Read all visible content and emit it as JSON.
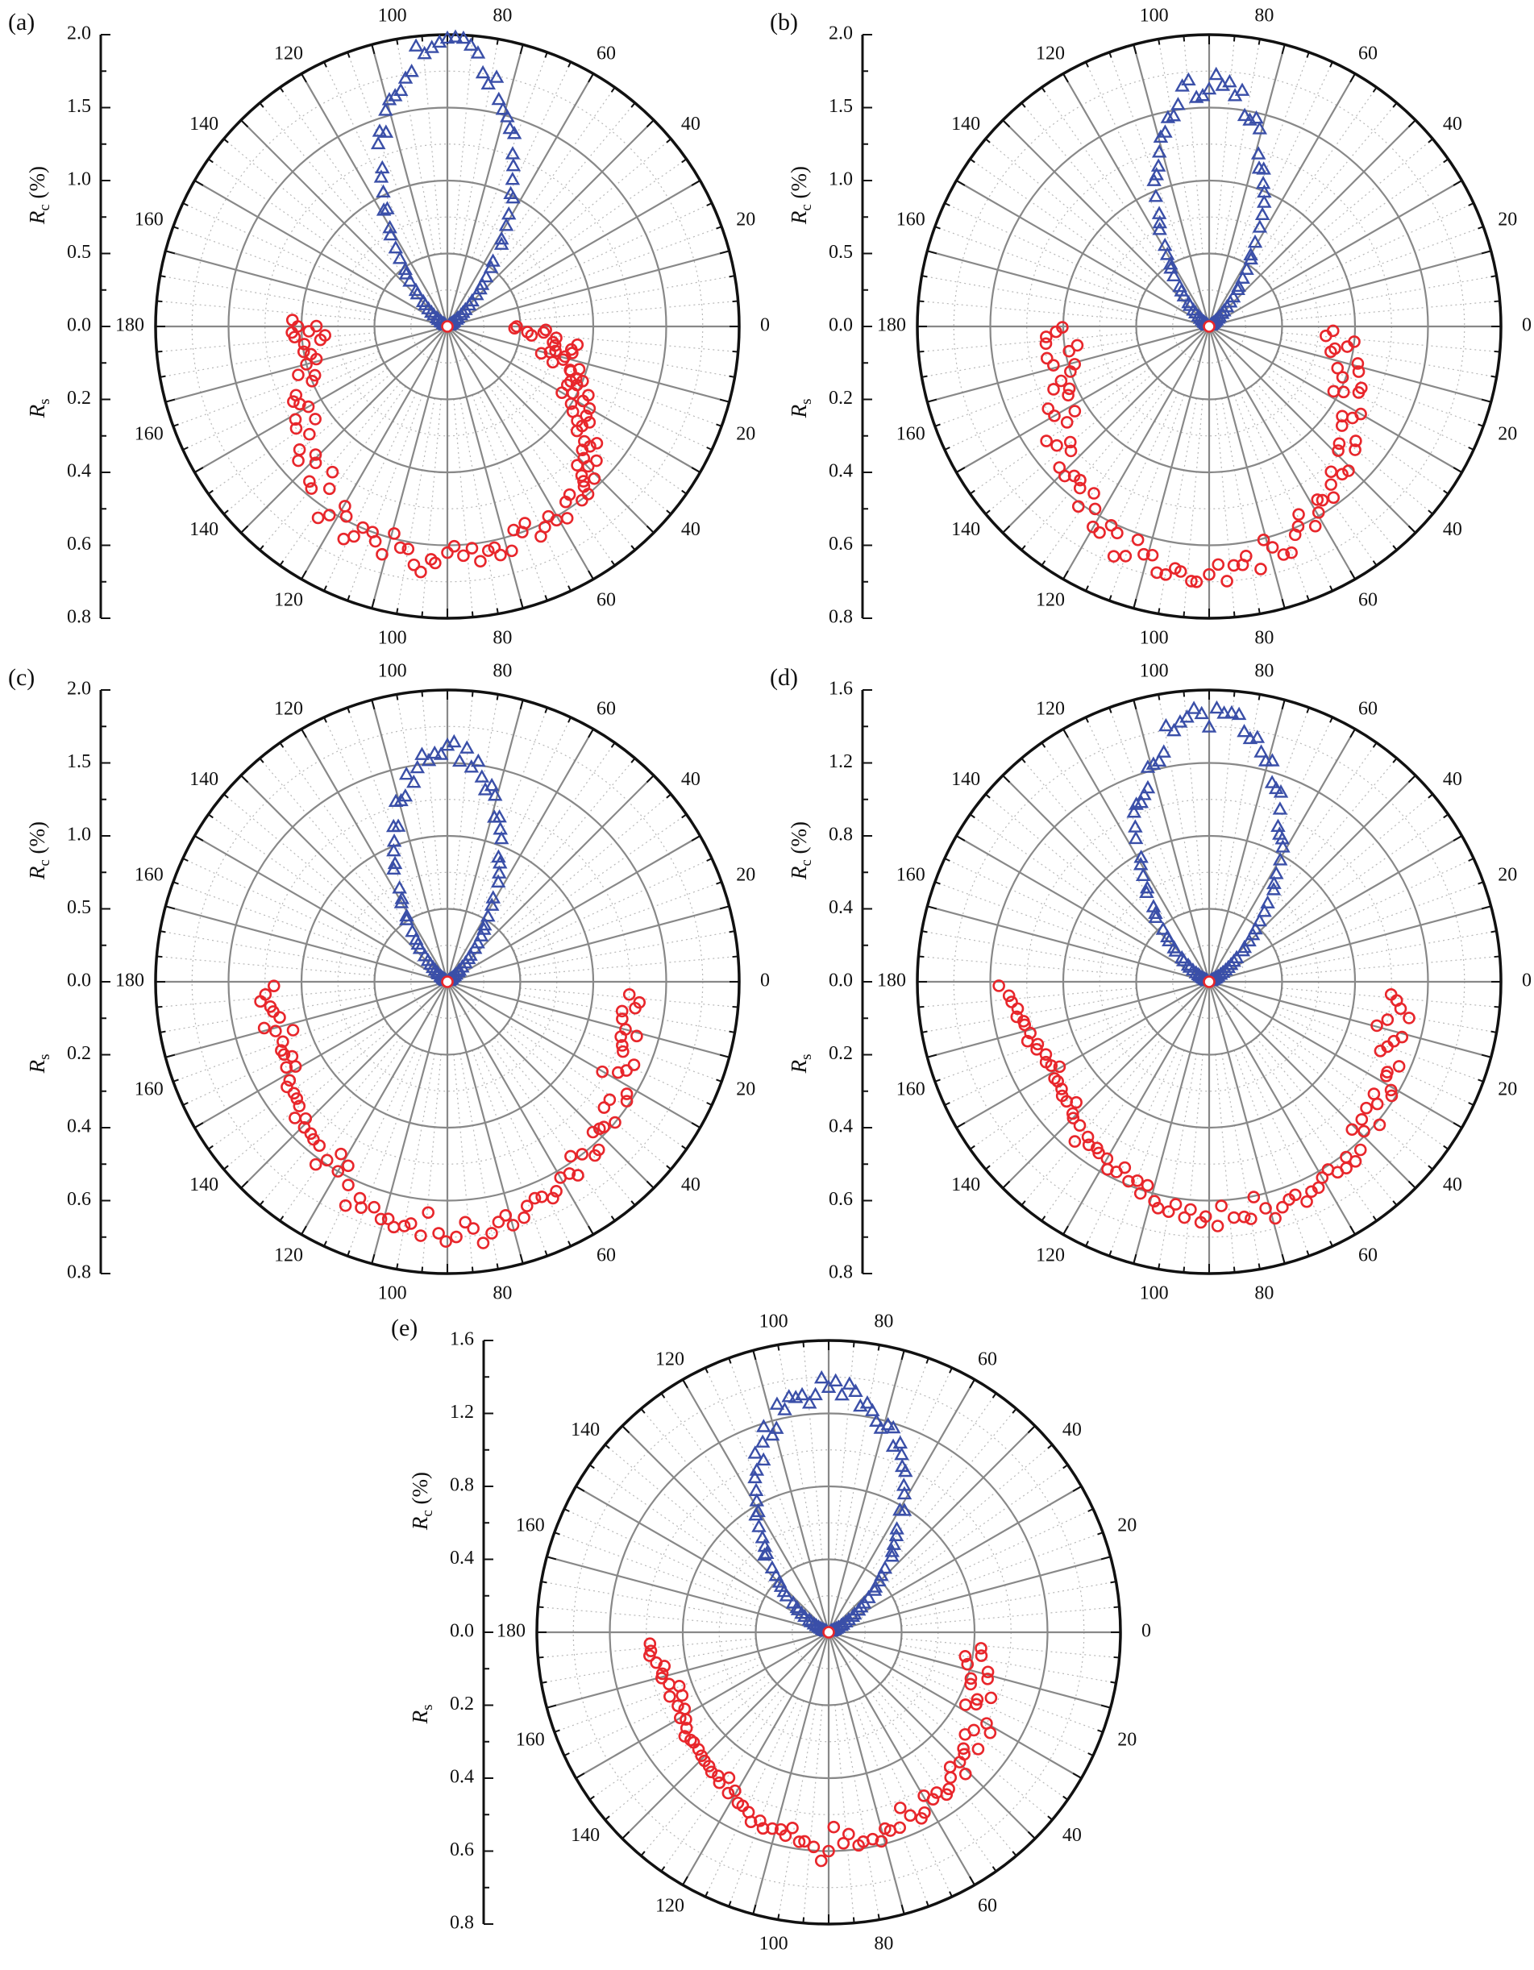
{
  "colors": {
    "rc_marker": "#3a4fa8",
    "rs_marker": "#e8262b",
    "axis": "#111111",
    "grid": "#888888",
    "minor_grid": "#b8b8b8"
  },
  "labels": {
    "rc_main": "R",
    "rc_sub": "c",
    "rc_unit": " (%)",
    "rs_main": "R",
    "rs_sub": "s"
  },
  "chart_data": [
    {
      "panel": "(a)",
      "type": "scatter",
      "coordinate": "polar",
      "rc_axis": {
        "ticks": [
          "2.0",
          "1.5",
          "1.0",
          "0.5",
          "0.0"
        ],
        "max": 2.0
      },
      "rs_axis": {
        "ticks": [
          "0.2",
          "0.4",
          "0.6",
          "0.8"
        ],
        "max": 0.8
      },
      "angle_labels_top": [
        "180",
        "160",
        "140",
        "120",
        "100",
        "80",
        "60",
        "40",
        "20",
        "0"
      ],
      "angle_labels_bottom": [
        "160",
        "140",
        "120",
        "100",
        "80",
        "60",
        "40",
        "20"
      ],
      "rc_peak": 1.95,
      "rc_width_exp": 6.0,
      "rs_points": [
        [
          0,
          0.19
        ],
        [
          2,
          0.27
        ],
        [
          4,
          0.22
        ],
        [
          6,
          0.3
        ],
        [
          8,
          0.36
        ],
        [
          10,
          0.3
        ],
        [
          12,
          0.35
        ],
        [
          14,
          0.29
        ],
        [
          16,
          0.33
        ],
        [
          18,
          0.38
        ],
        [
          20,
          0.36
        ],
        [
          22,
          0.4
        ],
        [
          24,
          0.37
        ],
        [
          26,
          0.43
        ],
        [
          28,
          0.39
        ],
        [
          30,
          0.45
        ],
        [
          32,
          0.4
        ],
        [
          34,
          0.47
        ],
        [
          36,
          0.44
        ],
        [
          38,
          0.52
        ],
        [
          40,
          0.49
        ],
        [
          42,
          0.55
        ],
        [
          44,
          0.52
        ],
        [
          46,
          0.58
        ],
        [
          48,
          0.55
        ],
        [
          50,
          0.6
        ],
        [
          54,
          0.57
        ],
        [
          58,
          0.62
        ],
        [
          62,
          0.59
        ],
        [
          66,
          0.63
        ],
        [
          70,
          0.6
        ],
        [
          74,
          0.64
        ],
        [
          78,
          0.62
        ],
        [
          82,
          0.65
        ],
        [
          86,
          0.63
        ],
        [
          90,
          0.62
        ],
        [
          94,
          0.64
        ],
        [
          98,
          0.66
        ],
        [
          102,
          0.62
        ],
        [
          106,
          0.65
        ],
        [
          110,
          0.6
        ],
        [
          114,
          0.63
        ],
        [
          118,
          0.59
        ],
        [
          122,
          0.61
        ],
        [
          126,
          0.55
        ],
        [
          130,
          0.58
        ],
        [
          134,
          0.52
        ],
        [
          138,
          0.55
        ],
        [
          142,
          0.48
        ],
        [
          146,
          0.5
        ],
        [
          150,
          0.44
        ],
        [
          154,
          0.47
        ],
        [
          158,
          0.4
        ],
        [
          162,
          0.43
        ],
        [
          166,
          0.37
        ],
        [
          170,
          0.4
        ],
        [
          174,
          0.35
        ],
        [
          176,
          0.42
        ],
        [
          178,
          0.38
        ],
        [
          180,
          0.41
        ]
      ],
      "rs_origin": true
    },
    {
      "panel": "(b)",
      "type": "scatter",
      "coordinate": "polar",
      "rc_axis": {
        "ticks": [
          "2.0",
          "1.5",
          "1.0",
          "0.5",
          "0.0"
        ],
        "max": 2.0
      },
      "rs_axis": {
        "ticks": [
          "0.2",
          "0.4",
          "0.6",
          "0.8"
        ],
        "max": 0.8
      },
      "angle_labels_top": [
        "180",
        "160",
        "140",
        "120",
        "100",
        "80",
        "60",
        "40",
        "20",
        "0"
      ],
      "angle_labels_bottom": [
        "160",
        "140",
        "120",
        "100",
        "80",
        "60",
        "40",
        "20"
      ],
      "rc_peak": 1.7,
      "rc_width_exp": 7.0,
      "rs_points": [
        [
          2,
          0.34
        ],
        [
          6,
          0.4
        ],
        [
          10,
          0.35
        ],
        [
          14,
          0.42
        ],
        [
          18,
          0.37
        ],
        [
          22,
          0.45
        ],
        [
          26,
          0.41
        ],
        [
          30,
          0.48
        ],
        [
          34,
          0.44
        ],
        [
          38,
          0.51
        ],
        [
          42,
          0.48
        ],
        [
          46,
          0.55
        ],
        [
          50,
          0.52
        ],
        [
          54,
          0.58
        ],
        [
          58,
          0.56
        ],
        [
          62,
          0.62
        ],
        [
          66,
          0.6
        ],
        [
          70,
          0.66
        ],
        [
          74,
          0.63
        ],
        [
          78,
          0.68
        ],
        [
          82,
          0.66
        ],
        [
          86,
          0.7
        ],
        [
          90,
          0.68
        ],
        [
          94,
          0.7
        ],
        [
          98,
          0.67
        ],
        [
          102,
          0.69
        ],
        [
          106,
          0.65
        ],
        [
          110,
          0.67
        ],
        [
          114,
          0.62
        ],
        [
          118,
          0.64
        ],
        [
          122,
          0.59
        ],
        [
          126,
          0.61
        ],
        [
          130,
          0.55
        ],
        [
          134,
          0.57
        ],
        [
          138,
          0.51
        ],
        [
          142,
          0.53
        ],
        [
          146,
          0.47
        ],
        [
          150,
          0.49
        ],
        [
          154,
          0.43
        ],
        [
          158,
          0.46
        ],
        [
          162,
          0.4
        ],
        [
          166,
          0.44
        ],
        [
          170,
          0.39
        ],
        [
          174,
          0.45
        ],
        [
          178,
          0.42
        ]
      ],
      "rs_origin": true
    },
    {
      "panel": "(c)",
      "type": "scatter",
      "coordinate": "polar",
      "rc_axis": {
        "ticks": [
          "2.0",
          "1.5",
          "1.0",
          "0.5",
          "0.0"
        ],
        "max": 2.0
      },
      "rs_axis": {
        "ticks": [
          "0.2",
          "0.4",
          "0.6",
          "0.8"
        ],
        "max": 0.8
      },
      "angle_labels_top": [
        "180",
        "160",
        "140",
        "120",
        "100",
        "80",
        "60",
        "40",
        "20",
        "0"
      ],
      "angle_labels_bottom": [
        "160",
        "140",
        "120",
        "100",
        "80",
        "60",
        "40",
        "20"
      ],
      "rc_peak": 1.62,
      "rc_width_exp": 6.5,
      "rs_points": [
        [
          4,
          0.5
        ],
        [
          8,
          0.52
        ],
        [
          12,
          0.49
        ],
        [
          16,
          0.54
        ],
        [
          20,
          0.51
        ],
        [
          24,
          0.56
        ],
        [
          28,
          0.53
        ],
        [
          32,
          0.58
        ],
        [
          36,
          0.55
        ],
        [
          40,
          0.6
        ],
        [
          44,
          0.58
        ],
        [
          48,
          0.62
        ],
        [
          52,
          0.6
        ],
        [
          56,
          0.64
        ],
        [
          60,
          0.62
        ],
        [
          64,
          0.66
        ],
        [
          68,
          0.64
        ],
        [
          72,
          0.68
        ],
        [
          76,
          0.66
        ],
        [
          80,
          0.7
        ],
        [
          84,
          0.68
        ],
        [
          88,
          0.7
        ],
        [
          92,
          0.69
        ],
        [
          96,
          0.7
        ],
        [
          100,
          0.68
        ],
        [
          104,
          0.67
        ],
        [
          108,
          0.65
        ],
        [
          112,
          0.64
        ],
        [
          116,
          0.62
        ],
        [
          120,
          0.6
        ],
        [
          124,
          0.59
        ],
        [
          128,
          0.57
        ],
        [
          132,
          0.56
        ],
        [
          136,
          0.54
        ],
        [
          140,
          0.53
        ],
        [
          144,
          0.52
        ],
        [
          148,
          0.51
        ],
        [
          152,
          0.5
        ],
        [
          156,
          0.49
        ],
        [
          160,
          0.48
        ],
        [
          164,
          0.49
        ],
        [
          168,
          0.47
        ],
        [
          172,
          0.49
        ],
        [
          176,
          0.5
        ]
      ],
      "rs_origin": true
    },
    {
      "panel": "(d)",
      "type": "scatter",
      "coordinate": "polar",
      "rc_axis": {
        "ticks": [
          "1.6",
          "1.2",
          "0.8",
          "0.4",
          "0.0"
        ],
        "max": 1.6
      },
      "rs_axis": {
        "ticks": [
          "0.2",
          "0.4",
          "0.6",
          "0.8"
        ],
        "max": 0.8
      },
      "angle_labels_top": [
        "180",
        "160",
        "140",
        "120",
        "100",
        "80",
        "60",
        "40",
        "20",
        "0"
      ],
      "angle_labels_bottom": [
        "160",
        "140",
        "120",
        "100",
        "80",
        "60",
        "40",
        "20"
      ],
      "rc_peak": 1.48,
      "rc_width_exp": 4.5,
      "rs_points": [
        [
          4,
          0.5
        ],
        [
          8,
          0.53
        ],
        [
          12,
          0.5
        ],
        [
          16,
          0.55
        ],
        [
          20,
          0.52
        ],
        [
          24,
          0.57
        ],
        [
          28,
          0.55
        ],
        [
          32,
          0.59
        ],
        [
          36,
          0.57
        ],
        [
          40,
          0.61
        ],
        [
          44,
          0.59
        ],
        [
          48,
          0.62
        ],
        [
          52,
          0.61
        ],
        [
          56,
          0.63
        ],
        [
          60,
          0.62
        ],
        [
          64,
          0.64
        ],
        [
          68,
          0.63
        ],
        [
          72,
          0.65
        ],
        [
          76,
          0.64
        ],
        [
          80,
          0.66
        ],
        [
          84,
          0.65
        ],
        [
          88,
          0.67
        ],
        [
          92,
          0.66
        ],
        [
          96,
          0.65
        ],
        [
          100,
          0.64
        ],
        [
          104,
          0.62
        ],
        [
          108,
          0.61
        ],
        [
          112,
          0.59
        ],
        [
          116,
          0.58
        ],
        [
          120,
          0.56
        ],
        [
          124,
          0.55
        ],
        [
          128,
          0.54
        ],
        [
          132,
          0.53
        ],
        [
          136,
          0.52
        ],
        [
          140,
          0.51
        ],
        [
          144,
          0.5
        ],
        [
          148,
          0.5
        ],
        [
          152,
          0.49
        ],
        [
          156,
          0.49
        ],
        [
          160,
          0.5
        ],
        [
          164,
          0.51
        ],
        [
          168,
          0.52
        ],
        [
          172,
          0.53
        ],
        [
          176,
          0.55
        ]
      ],
      "rs_origin": true
    },
    {
      "panel": "(e)",
      "type": "scatter",
      "coordinate": "polar",
      "rc_axis": {
        "ticks": [
          "1.6",
          "1.2",
          "0.8",
          "0.4",
          "0.0"
        ],
        "max": 1.6
      },
      "rs_axis": {
        "ticks": [
          "0.2",
          "0.4",
          "0.6",
          "0.8"
        ],
        "max": 0.8
      },
      "angle_labels_top": [
        "180",
        "160",
        "140",
        "120",
        "100",
        "80",
        "60",
        "40",
        "20",
        "0"
      ],
      "angle_labels_bottom": [
        "160",
        "140",
        "120",
        "100",
        "80",
        "60",
        "40",
        "20"
      ],
      "rc_peak": 1.36,
      "rc_width_exp": 3.5,
      "rs_points": [
        [
          6,
          0.42
        ],
        [
          10,
          0.38
        ],
        [
          14,
          0.45
        ],
        [
          18,
          0.41
        ],
        [
          22,
          0.48
        ],
        [
          26,
          0.45
        ],
        [
          30,
          0.5
        ],
        [
          34,
          0.48
        ],
        [
          38,
          0.52
        ],
        [
          42,
          0.5
        ],
        [
          46,
          0.54
        ],
        [
          50,
          0.52
        ],
        [
          54,
          0.55
        ],
        [
          58,
          0.54
        ],
        [
          62,
          0.56
        ],
        [
          66,
          0.55
        ],
        [
          70,
          0.57
        ],
        [
          74,
          0.56
        ],
        [
          78,
          0.58
        ],
        [
          82,
          0.59
        ],
        [
          86,
          0.58
        ],
        [
          90,
          0.6
        ],
        [
          94,
          0.59
        ],
        [
          98,
          0.58
        ],
        [
          102,
          0.57
        ],
        [
          106,
          0.56
        ],
        [
          110,
          0.55
        ],
        [
          114,
          0.54
        ],
        [
          118,
          0.53
        ],
        [
          122,
          0.52
        ],
        [
          126,
          0.51
        ],
        [
          130,
          0.5
        ],
        [
          134,
          0.49
        ],
        [
          138,
          0.48
        ],
        [
          142,
          0.48
        ],
        [
          146,
          0.47
        ],
        [
          150,
          0.47
        ],
        [
          154,
          0.46
        ],
        [
          158,
          0.47
        ],
        [
          162,
          0.46
        ],
        [
          166,
          0.47
        ],
        [
          170,
          0.48
        ],
        [
          174,
          0.49
        ]
      ],
      "rs_origin": true
    }
  ]
}
